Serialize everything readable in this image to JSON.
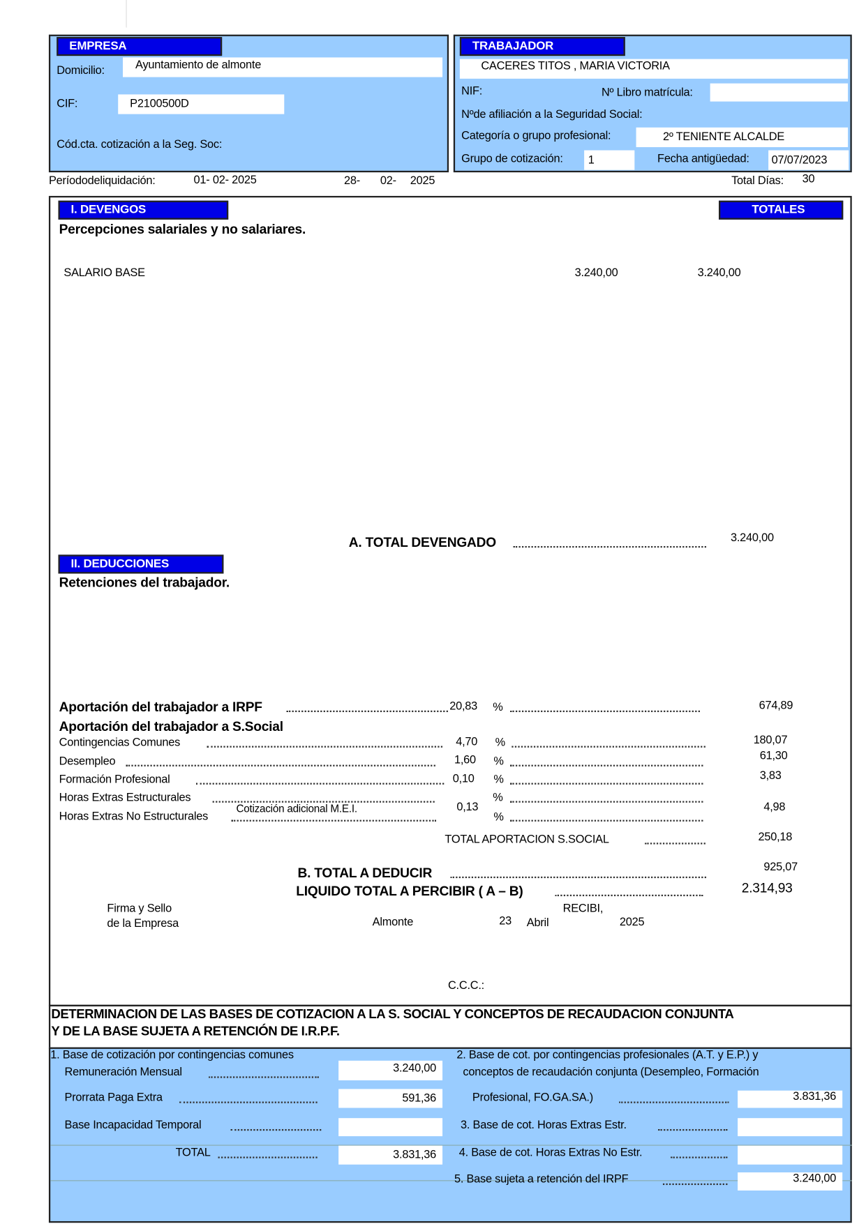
{
  "empresa": {
    "header": "EMPRESA",
    "domicilio_label": "Domicilio:",
    "domicilio": "Ayuntamiento de almonte",
    "cif_label": "CIF:",
    "cif": "P2100500D",
    "ccc_label": "Cód.cta. cotización a la Seg. Soc:"
  },
  "trabajador": {
    "header": "TRABAJADOR",
    "nombre": "CACERES TITOS , MARIA VICTORIA",
    "nif_label": "NIF:",
    "libro_label": "Nº Libro matrícula:",
    "afiliacion_label": "Nºde afiliación a la Seguridad Social:",
    "categoria_label": "Categoría o grupo profesional:",
    "categoria": "2º TENIENTE ALCALDE",
    "grupo_label": "Grupo de cotización:",
    "grupo": "1",
    "antiguedad_label": "Fecha antigüedad:",
    "antiguedad": "07/07/2023"
  },
  "periodo": {
    "label": "Períododeliquidación:",
    "desde": "01- 02- 2025",
    "hasta_dia": "28-",
    "hasta_mes": "02-",
    "hasta_anio": "2025",
    "total_dias_label": "Total Días:",
    "total_dias": "30"
  },
  "devengos": {
    "header": "I. DEVENGOS",
    "totales_header": "TOTALES",
    "subtitle": "Percepciones salariales y no salariares.",
    "items": [
      {
        "concepto": "SALARIO BASE",
        "importe": "3.240,00",
        "total": "3.240,00"
      }
    ],
    "total_label": "A. TOTAL DEVENGADO",
    "total": "3.240,00"
  },
  "deducciones": {
    "header": "II. DEDUCCIONES",
    "subtitle": "Retenciones del trabajador.",
    "irpf_label": "Aportación del trabajador a IRPF",
    "irpf_pct": "20,83",
    "irpf_importe": "674,89",
    "ss_label": "Aportación del trabajador a S.Social",
    "pct_sign": "%",
    "contingencias_label": "Contingencias Comunes",
    "contingencias_pct": "4,70",
    "contingencias_importe": "180,07",
    "desempleo_label": "Desempleo",
    "desempleo_pct": "1,60",
    "desempleo_importe": "61,30",
    "formacion_label": "Formación Profesional",
    "formacion_pct": "0,10",
    "formacion_importe": "3,83",
    "he_estr_label": "Horas Extras Estructurales",
    "mei_label": "Cotización adicional M.E.I.",
    "mei_pct": "0,13",
    "mei_importe": "4,98",
    "he_noestr_label": "Horas Extras No Estructurales",
    "total_ss_label": "TOTAL APORTACION S.SOCIAL",
    "total_ss": "250,18",
    "total_deducir_label": "B. TOTAL A DEDUCIR",
    "total_deducir": "925,07",
    "liquido_label": "LIQUIDO TOTAL A PERCIBIR ( A – B)",
    "liquido": "2.314,93"
  },
  "firma": {
    "firma_line1": "Firma y Sello",
    "firma_line2": "de la Empresa",
    "recibi": "RECIBI,",
    "lugar": "Almonte",
    "dia": "23",
    "mes": "Abril",
    "anio": "2025",
    "ccc_label": "C.C.C.:"
  },
  "bases": {
    "title_line1": "DETERMINACION DE LAS BASES DE COTIZACION A LA S. SOCIAL Y CONCEPTOS DE RECAUDACION CONJUNTA",
    "title_line2": "Y DE LA BASE SUJETA A RETENCIÓN DE I.R.P.F.",
    "b1_label": "1. Base de cotización por contingencias comunes",
    "remuneracion_label": "Remuneración Mensual",
    "remuneracion": "3.240,00",
    "prorrata_label": "Prorrata Paga Extra",
    "prorrata": "591,36",
    "incapacidad_label": "Base Incapacidad Temporal",
    "incapacidad": "",
    "total_label": "TOTAL",
    "total": "3.831,36",
    "b2_line1": "2. Base de cot. por contingencias profesionales (A.T. y E.P.) y",
    "b2_line2": "conceptos de recaudación conjunta (Desempleo, Formación",
    "b2_line3": "Profesional, FO.GA.SA.)",
    "b2": "3.831,36",
    "b3_label": "3. Base  de cot. Horas Extras Estr.",
    "b3": "",
    "b4_label": "4. Base de cot. Horas Extras No Estr.",
    "b4": "",
    "b5_label": "5. Base sujeta a retención del IRPF",
    "b5": "3.240,00"
  },
  "colors": {
    "header_blue": "#0000e6",
    "panel_blue": "#99ccff"
  }
}
